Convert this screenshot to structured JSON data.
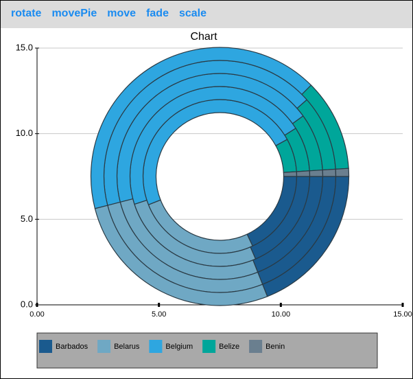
{
  "toolbar": [
    "rotate",
    "movePie",
    "move",
    "fade",
    "scale"
  ],
  "chart_data": {
    "type": "ring",
    "title": "Chart",
    "categories": [
      "Barbados",
      "Belarus",
      "Belgium",
      "Belize",
      "Benin"
    ],
    "colors": [
      "#1a5a8e",
      "#6fa8c4",
      "#2ea6e0",
      "#00a69a",
      "#6a7f8f"
    ],
    "rings": [
      [
        18,
        26,
        48,
        7,
        1
      ],
      [
        18.5,
        26.5,
        46,
        8,
        1
      ],
      [
        19,
        27,
        44,
        9,
        1
      ],
      [
        19,
        27,
        42.5,
        10.5,
        1
      ],
      [
        19,
        27,
        41.5,
        11.5,
        1
      ]
    ],
    "xlim": [
      0,
      15
    ],
    "ylim": [
      0,
      15
    ],
    "xticks": [
      {
        "value": 0,
        "label": "0.00"
      },
      {
        "value": 5,
        "label": "5.00"
      },
      {
        "value": 10,
        "label": "10.00"
      },
      {
        "value": 15,
        "label": "15.00"
      }
    ],
    "yticks": [
      {
        "value": 0,
        "label": "0.0"
      },
      {
        "value": 5,
        "label": "5.0"
      },
      {
        "value": 10,
        "label": "10.0"
      },
      {
        "value": 15,
        "label": "15.0"
      }
    ],
    "grid": true
  }
}
